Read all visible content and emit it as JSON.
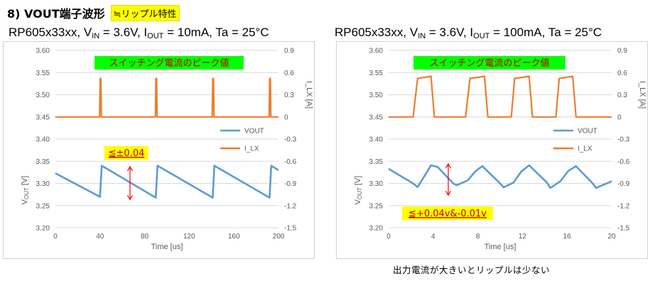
{
  "heading": {
    "title": "8) VOUT端子波形",
    "tag": "≒リップル特性"
  },
  "conditions": [
    {
      "device": "RP605x33xx, V",
      "vin_sub": "IN",
      "vin_val": " = 3.6V, I",
      "iout_sub": "OUT",
      "iout_val": " = 10mA, Ta = 25°C"
    },
    {
      "device": "RP605x33xx, V",
      "vin_sub": "IN",
      "vin_val": " = 3.6V, I",
      "iout_sub": "OUT",
      "iout_val": " = 100mA, Ta = 25°C"
    }
  ],
  "caption": "出力電流が大きいとリップルは少ない",
  "colors": {
    "vout": "#5b9bd5",
    "ilx": "#ed7d31",
    "grid": "#d9d9d9",
    "note_bg": "#ffff00",
    "note_text": "#c00000",
    "peak_bg": "#00ff00",
    "arrow": "#ff0000"
  },
  "chart_data": [
    {
      "type": "line",
      "xlabel": "Time [us]",
      "ylabel": "VOUT [V]",
      "ylabel_main": "V",
      "ylabel_sub": "OUT",
      "ylabel_unit": " [V]",
      "y2label": "I_LX [A]",
      "xlim": [
        0,
        200
      ],
      "ylim": [
        3.2,
        3.6
      ],
      "y2lim": [
        -1.5,
        0.9
      ],
      "xticks": [
        "0",
        "40",
        "80",
        "120",
        "160",
        "200"
      ],
      "yticks": [
        "3.20",
        "3.25",
        "3.30",
        "3.35",
        "3.40",
        "3.45",
        "3.50",
        "3.55",
        "3.60"
      ],
      "y2ticks": [
        "-1.5",
        "-1.2",
        "-0.9",
        "-0.6",
        "-0.3",
        "0",
        "0.3",
        "0.6",
        "0.9"
      ],
      "legend": {
        "position": "right",
        "entries": [
          "VOUT",
          "I_LX"
        ]
      },
      "grid": true,
      "annotations": {
        "peak": "スイッチング電流のピーク値",
        "ripple": "≦±0.04"
      },
      "series": [
        {
          "name": "VOUT",
          "axis": "left",
          "x": [
            0,
            40,
            41.5,
            90,
            91.5,
            141,
            142.5,
            192,
            193.5,
            200
          ],
          "y": [
            3.323,
            3.27,
            3.34,
            3.268,
            3.34,
            3.268,
            3.34,
            3.268,
            3.34,
            3.33
          ]
        },
        {
          "name": "I_LX",
          "axis": "right",
          "x": [
            0,
            39.6,
            40.1,
            40.7,
            41.2,
            89.6,
            90.1,
            90.7,
            91.2,
            140.6,
            141.1,
            141.7,
            142.2,
            191.6,
            192.1,
            192.7,
            193.2,
            200
          ],
          "y": [
            0,
            0,
            0.52,
            0.52,
            0,
            0,
            0.52,
            0.52,
            0,
            0,
            0.52,
            0.52,
            0,
            0,
            0.52,
            0.52,
            0,
            0
          ]
        }
      ]
    },
    {
      "type": "line",
      "xlabel": "Time [us]",
      "ylabel": "VOUT [V]",
      "ylabel_main": "V",
      "ylabel_sub": "OUT",
      "ylabel_unit": " [V]",
      "y2label": "I_LX [A]",
      "xlim": [
        0,
        20
      ],
      "ylim": [
        3.2,
        3.6
      ],
      "y2lim": [
        -1.5,
        0.9
      ],
      "xticks": [
        "0",
        "4",
        "8",
        "12",
        "16",
        "20"
      ],
      "yticks": [
        "3.20",
        "3.25",
        "3.30",
        "3.35",
        "3.40",
        "3.45",
        "3.50",
        "3.55",
        "3.60"
      ],
      "y2ticks": [
        "-1.5",
        "-1.2",
        "-0.9",
        "-0.6",
        "-0.3",
        "0",
        "0.3",
        "0.6",
        "0.9"
      ],
      "legend": {
        "position": "right",
        "entries": [
          "VOUT",
          "I_LX"
        ]
      },
      "grid": true,
      "annotations": {
        "peak": "スイッチング電流のピーク値",
        "ripple": "≦+0.04v&-0.01v"
      },
      "series": [
        {
          "name": "VOUT",
          "axis": "left",
          "x": [
            0,
            2.2,
            2.6,
            3.3,
            3.8,
            4.4,
            5.8,
            6.1,
            7.1,
            7.8,
            8.4,
            10.0,
            10.3,
            11.2,
            11.9,
            12.6,
            14.2,
            14.5,
            15.4,
            16.1,
            16.8,
            18.3,
            18.6,
            20
          ],
          "y": [
            3.333,
            3.3,
            3.292,
            3.32,
            3.341,
            3.337,
            3.3,
            3.296,
            3.307,
            3.328,
            3.339,
            3.3,
            3.291,
            3.302,
            3.327,
            3.341,
            3.302,
            3.29,
            3.305,
            3.328,
            3.339,
            3.3,
            3.29,
            3.305
          ]
        },
        {
          "name": "I_LX",
          "axis": "right",
          "x": [
            0,
            2.2,
            2.6,
            3.8,
            4.1,
            6.9,
            7.3,
            8.6,
            8.9,
            11.0,
            11.3,
            12.6,
            12.9,
            15.0,
            15.3,
            16.5,
            16.8,
            20
          ],
          "y": [
            0,
            0,
            0.52,
            0.55,
            0,
            0,
            0.52,
            0.55,
            0,
            0,
            0.52,
            0.55,
            0,
            0,
            0.52,
            0.55,
            0,
            0
          ]
        }
      ]
    }
  ]
}
